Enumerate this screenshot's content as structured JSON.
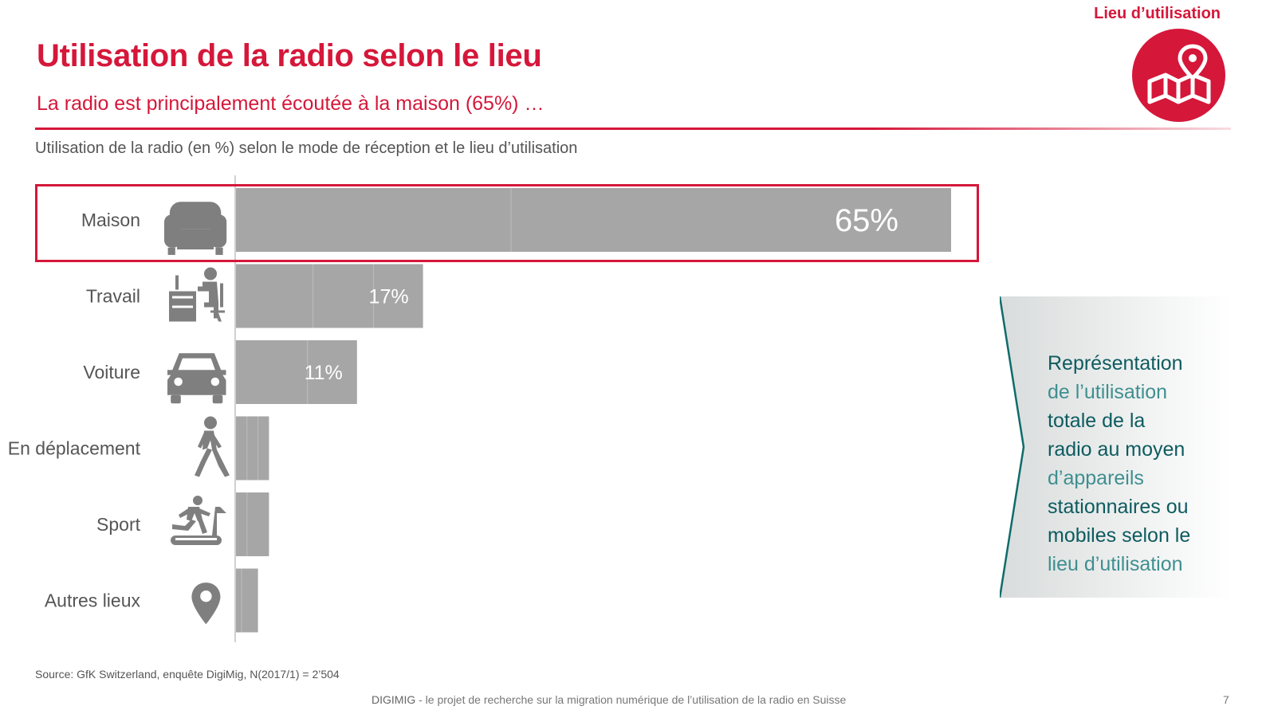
{
  "header": {
    "section_label": "Lieu d’utilisation",
    "badge_icon": "map-pin-icon",
    "title": "Utilisation de la radio selon le lieu",
    "subtitle": "La radio est principalement écoutée à la maison (65%) …"
  },
  "colors": {
    "accent": "#d5173a",
    "bar": "#a6a6a6",
    "icon": "#7f7f7f",
    "callout_text": "#0f6b6b"
  },
  "chart_data": {
    "type": "bar",
    "orientation": "horizontal",
    "title": "Utilisation de la radio (en %) selon le mode de réception et le lieu d’utilisation",
    "categories": [
      "Maison",
      "Travail",
      "Voiture",
      "En déplacement",
      "Sport",
      "Autres lieux"
    ],
    "icons": [
      "armchair-icon",
      "desk-worker-icon",
      "car-icon",
      "walking-person-icon",
      "treadmill-icon",
      "location-pin-icon"
    ],
    "values": [
      65,
      17,
      11,
      3,
      3,
      2
    ],
    "labels": [
      "65%",
      "17%",
      "11%",
      "",
      "",
      ""
    ],
    "segments": [
      [
        25,
        40
      ],
      [
        7,
        5.5,
        4.5
      ],
      [
        6.5,
        4.5
      ],
      [
        1,
        1,
        1
      ],
      [
        1,
        2
      ],
      [
        0.5,
        1.5
      ]
    ],
    "highlight_category": "Maison",
    "xlim": [
      0,
      70
    ],
    "grid": false,
    "legend": "none"
  },
  "callout": {
    "lines": [
      {
        "text": "Représentation",
        "tone": "dark"
      },
      {
        "text": "de l’utilisation",
        "tone": "light"
      },
      {
        "text": "totale de la",
        "tone": "dark"
      },
      {
        "text": "radio au moyen",
        "tone": "dark"
      },
      {
        "text": "d’appareils",
        "tone": "light"
      },
      {
        "text": "stationnaires ou",
        "tone": "dark"
      },
      {
        "text": "mobiles selon le",
        "tone": "dark"
      },
      {
        "text": "lieu d’utilisation",
        "tone": "light"
      }
    ]
  },
  "footer": {
    "source": "Source: GfK Switzerland, enquête DigiMig, N(2017/1) = 2’504",
    "project_name": "DIGIMIG",
    "project_desc": " - le projet de recherche sur la migration numérique de l’utilisation de la radio en Suisse",
    "page_number": "7"
  }
}
